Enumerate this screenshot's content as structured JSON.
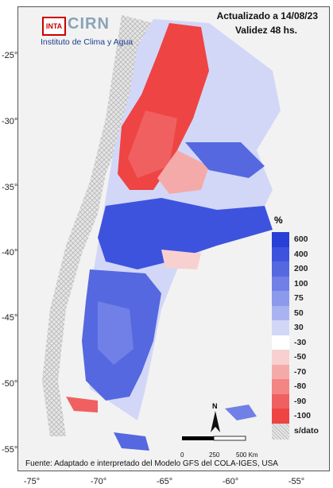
{
  "header": {
    "logo_inta": "INTA",
    "logo_cirn": "CIRN",
    "logo_subtitle": "Instituto de Clima y Agua",
    "updated": "Actualizado a 14/08/23",
    "validity": "Validez 48 hs."
  },
  "legend": {
    "unit": "%",
    "items": [
      {
        "label": "600",
        "color": "#2a3fd6"
      },
      {
        "label": "400",
        "color": "#3e53dd"
      },
      {
        "label": "200",
        "color": "#5568e0"
      },
      {
        "label": "100",
        "color": "#7080e6"
      },
      {
        "label": "75",
        "color": "#8c99ec"
      },
      {
        "label": "50",
        "color": "#aab3f1"
      },
      {
        "label": "30",
        "color": "#d2d7f7"
      },
      {
        "label": "-30",
        "color": "#ffffff"
      },
      {
        "label": "-50",
        "color": "#f8d0d0"
      },
      {
        "label": "-70",
        "color": "#f5aaaa"
      },
      {
        "label": "-80",
        "color": "#f38585"
      },
      {
        "label": "-90",
        "color": "#f06060"
      },
      {
        "label": "-100",
        "color": "#ee4444"
      },
      {
        "label": "s/dato",
        "color": "#dcdcdc"
      }
    ]
  },
  "axes": {
    "lat_ticks": [
      "-25°",
      "-30°",
      "-35°",
      "-40°",
      "-45°",
      "-50°",
      "-55°"
    ],
    "lon_ticks": [
      "-75°",
      "-70°",
      "-65°",
      "-60°",
      "-55°"
    ]
  },
  "scale_bar": {
    "labels": [
      "0",
      "250",
      "500 Km"
    ],
    "north": "N"
  },
  "source": "Fuente: Adaptado e interpretado del Modelo GFS del COLA-IGES, USA"
}
